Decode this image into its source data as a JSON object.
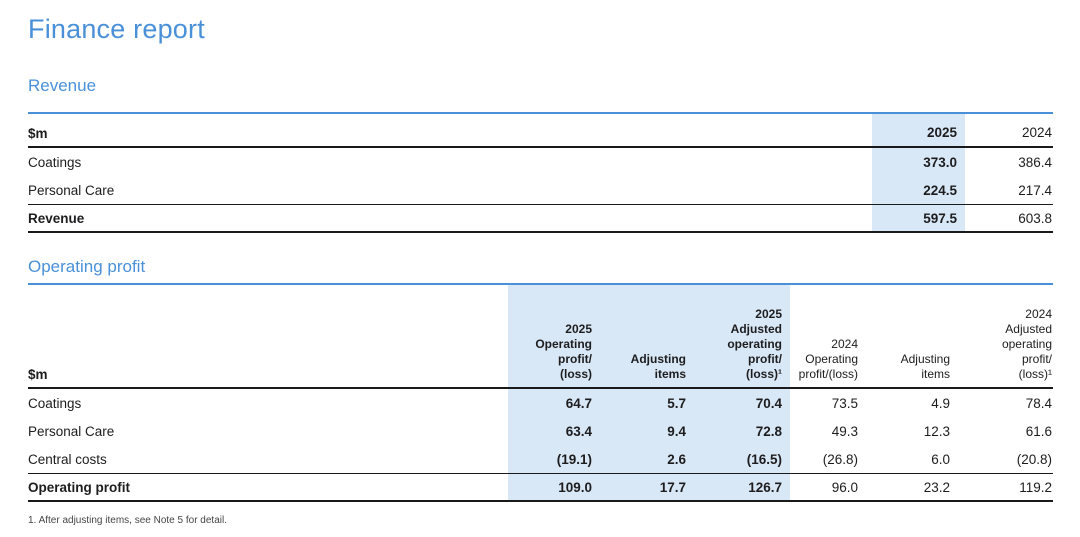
{
  "meta": {
    "title": "Finance report",
    "footnote": "1. After adjusting items, see Note 5 for detail."
  },
  "colors": {
    "accent_blue": "#4a90d9",
    "highlight_blue": "#d9e8f6",
    "text": "#1d1d1f",
    "rule_dark": "#1a1a1a",
    "footnote_gray": "#454545"
  },
  "revenue": {
    "heading": "Revenue",
    "unit_label": "$m",
    "columns": [
      {
        "label": "2025",
        "lines": [
          "2025"
        ],
        "highlight": true,
        "bold": true
      },
      {
        "label": "2024",
        "lines": [
          "2024"
        ],
        "highlight": false,
        "bold": false
      }
    ],
    "rows": [
      {
        "label": "Coatings",
        "total": false,
        "values": [
          "373.0",
          "386.4"
        ]
      },
      {
        "label": "Personal Care",
        "total": false,
        "values": [
          "224.5",
          "217.4"
        ]
      },
      {
        "label": "Revenue",
        "total": true,
        "values": [
          "597.5",
          "603.8"
        ]
      }
    ]
  },
  "operating": {
    "heading": "Operating profit",
    "unit_label": "$m",
    "columns": [
      {
        "label": "2025 Operating profit/(loss)",
        "lines": [
          "2025",
          "Operating",
          "profit/",
          "(loss)"
        ],
        "highlight": true,
        "bold": true
      },
      {
        "label": "Adjusting items",
        "lines": [
          "Adjusting",
          "items"
        ],
        "highlight": true,
        "bold": true
      },
      {
        "label": "2025 Adjusted operating profit/(loss)",
        "lines": [
          "2025",
          "Adjusted",
          "operating",
          "profit/",
          "(loss)¹"
        ],
        "highlight": true,
        "bold": true
      },
      {
        "label": "2024 Operating profit/(loss)",
        "lines": [
          "2024",
          "Operating",
          "profit/(loss)"
        ],
        "highlight": false,
        "bold": false
      },
      {
        "label": "Adjusting items",
        "lines": [
          "Adjusting",
          "items"
        ],
        "highlight": false,
        "bold": false
      },
      {
        "label": "2024 Adjusted operating profit/(loss)",
        "lines": [
          "2024",
          "Adjusted",
          "operating",
          "profit/",
          "(loss)¹"
        ],
        "highlight": false,
        "bold": false
      }
    ],
    "rows": [
      {
        "label": "Coatings",
        "total": false,
        "values": [
          "64.7",
          "5.7",
          "70.4",
          "73.5",
          "4.9",
          "78.4"
        ]
      },
      {
        "label": "Personal Care",
        "total": false,
        "values": [
          "63.4",
          "9.4",
          "72.8",
          "49.3",
          "12.3",
          "61.6"
        ]
      },
      {
        "label": "Central costs",
        "total": false,
        "values": [
          "(19.1)",
          "2.6",
          "(16.5)",
          "(26.8)",
          "6.0",
          "(20.8)"
        ]
      },
      {
        "label": "Operating profit",
        "total": true,
        "values": [
          "109.0",
          "17.7",
          "126.7",
          "96.0",
          "23.2",
          "119.2"
        ]
      }
    ]
  }
}
